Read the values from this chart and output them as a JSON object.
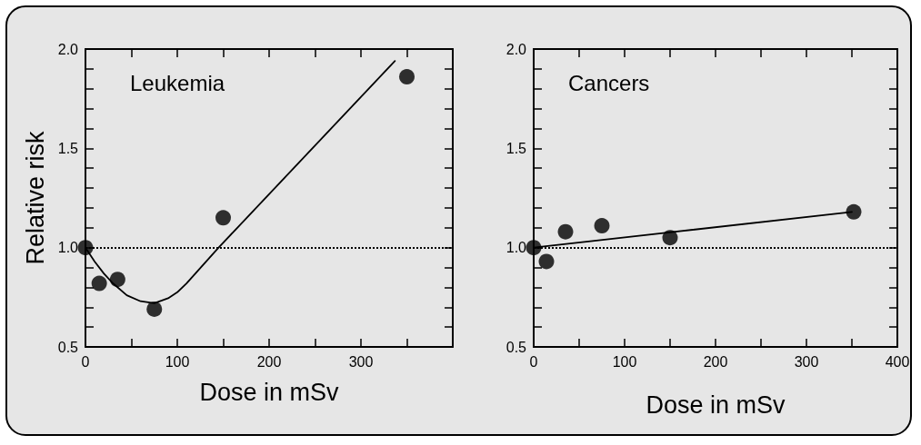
{
  "chart_data": [
    {
      "type": "scatter",
      "title": "Leukemia",
      "xlabel": "Dose in mSv",
      "ylabel": "Relative risk",
      "xlim": [
        0,
        400
      ],
      "xticks": [
        0,
        {
          "value": 50,
          "label": null
        },
        100,
        {
          "value": 150,
          "label": null
        },
        200,
        {
          "value": 250,
          "label": null
        },
        300,
        {
          "value": 350,
          "label": null
        },
        {
          "value": 400,
          "label": null
        }
      ],
      "ylim": [
        0.5,
        2.0
      ],
      "yticks": [
        {
          "value": 0.5,
          "label": "0.5"
        },
        {
          "value": 0.6,
          "label": null
        },
        {
          "value": 0.7,
          "label": null
        },
        {
          "value": 0.8,
          "label": null
        },
        {
          "value": 0.9,
          "label": null
        },
        {
          "value": 1.0,
          "label": "1.0"
        },
        {
          "value": 1.1,
          "label": null
        },
        {
          "value": 1.2,
          "label": null
        },
        {
          "value": 1.3,
          "label": null
        },
        {
          "value": 1.4,
          "label": null
        },
        {
          "value": 1.5,
          "label": "1.5"
        },
        {
          "value": 1.6,
          "label": null
        },
        {
          "value": 1.7,
          "label": null
        },
        {
          "value": 1.8,
          "label": null
        },
        {
          "value": 1.9,
          "label": null
        },
        {
          "value": 2.0,
          "label": "2.0"
        }
      ],
      "grid": false,
      "ref_lines": [
        {
          "axis": "y",
          "value": 1.0,
          "color": "#000000",
          "line_style": "dotted"
        }
      ],
      "series": [
        {
          "color": "#000000",
          "marker": "circle",
          "x": [
            0,
            15,
            35,
            75,
            150,
            350
          ],
          "values": [
            1.0,
            0.82,
            0.84,
            0.69,
            1.15,
            1.86
          ]
        },
        {
          "type": "line",
          "color": "#000000",
          "marker": "none",
          "line_style": "solid",
          "x": [
            0,
            10,
            20,
            30,
            45,
            60,
            75,
            90,
            100,
            110,
            145,
            337
          ],
          "values": [
            1.0,
            0.93,
            0.87,
            0.82,
            0.76,
            0.73,
            0.72,
            0.745,
            0.775,
            0.82,
            1.0,
            1.94
          ]
        }
      ]
    },
    {
      "type": "scatter",
      "title": "Cancers",
      "xlabel": "Dose in mSv",
      "xlim": [
        0,
        400
      ],
      "xticks": [
        0,
        {
          "value": 50,
          "label": null
        },
        100,
        {
          "value": 150,
          "label": null
        },
        200,
        {
          "value": 250,
          "label": null
        },
        300,
        {
          "value": 350,
          "label": null
        },
        400
      ],
      "ylim": [
        0.5,
        2.0
      ],
      "yticks": [
        {
          "value": 0.5,
          "label": "0.5"
        },
        {
          "value": 0.6,
          "label": null
        },
        {
          "value": 0.7,
          "label": null
        },
        {
          "value": 0.8,
          "label": null
        },
        {
          "value": 0.9,
          "label": null
        },
        {
          "value": 1.0,
          "label": "1.0"
        },
        {
          "value": 1.1,
          "label": null
        },
        {
          "value": 1.2,
          "label": null
        },
        {
          "value": 1.3,
          "label": null
        },
        {
          "value": 1.4,
          "label": null
        },
        {
          "value": 1.5,
          "label": "1.5"
        },
        {
          "value": 1.6,
          "label": null
        },
        {
          "value": 1.7,
          "label": null
        },
        {
          "value": 1.8,
          "label": null
        },
        {
          "value": 1.9,
          "label": null
        },
        {
          "value": 2.0,
          "label": "2.0"
        }
      ],
      "grid": false,
      "ref_lines": [
        {
          "axis": "y",
          "value": 1.0,
          "color": "#000000",
          "line_style": "dotted"
        }
      ],
      "series": [
        {
          "color": "#000000",
          "marker": "circle",
          "x": [
            0,
            14,
            35,
            75,
            150,
            352
          ],
          "values": [
            1.0,
            0.93,
            1.08,
            1.11,
            1.05,
            1.18
          ]
        },
        {
          "type": "line",
          "color": "#000000",
          "marker": "none",
          "line_style": "solid",
          "x": [
            0,
            350
          ],
          "values": [
            1.0,
            1.18
          ]
        }
      ]
    }
  ]
}
